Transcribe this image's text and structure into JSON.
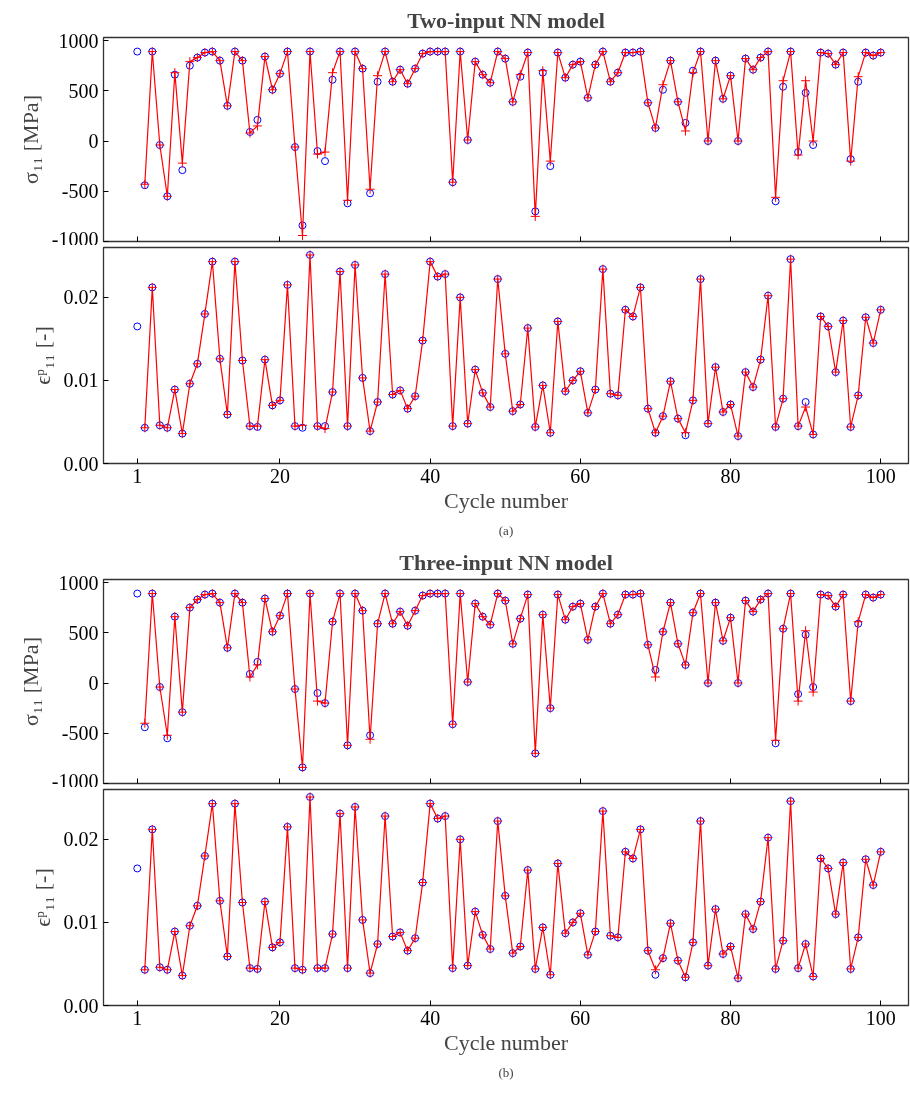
{
  "chart_data": [
    {
      "type": "line",
      "title": "Two-input NN model",
      "ylabel": "σ₁₁ [MPa]",
      "tick_labels": "y",
      "xlim": [
        -3.5,
        103.7
      ],
      "xticks": [
        1,
        20,
        40,
        60,
        80,
        100
      ],
      "ylim": [
        -1000,
        1030
      ],
      "yticks": [
        -1000,
        -500,
        0,
        500,
        1000
      ],
      "x": [
        1,
        2,
        3,
        4,
        5,
        6,
        7,
        8,
        9,
        10,
        11,
        12,
        13,
        14,
        15,
        16,
        17,
        18,
        19,
        20,
        21,
        22,
        23,
        24,
        25,
        26,
        27,
        28,
        29,
        30,
        31,
        32,
        33,
        34,
        35,
        36,
        37,
        38,
        39,
        40,
        41,
        42,
        43,
        44,
        45,
        46,
        47,
        48,
        49,
        50,
        51,
        52,
        53,
        54,
        55,
        56,
        57,
        58,
        59,
        60,
        61,
        62,
        63,
        64,
        65,
        66,
        67,
        68,
        69,
        70,
        71,
        72,
        73,
        74,
        75,
        76,
        77,
        78,
        79,
        80,
        81,
        82,
        83,
        84,
        85,
        86,
        87,
        88,
        89,
        90,
        91,
        92,
        93,
        94,
        95,
        96,
        97,
        98,
        99,
        100
      ],
      "series": [
        {
          "type": "scatter",
          "marker": "circle",
          "color": "#0000ff",
          "values": [
            890,
            -440,
            890,
            -40,
            -550,
            660,
            -290,
            750,
            830,
            880,
            890,
            800,
            350,
            890,
            800,
            90,
            210,
            840,
            510,
            670,
            890,
            -60,
            -840,
            890,
            -100,
            -200,
            610,
            890,
            -620,
            890,
            720,
            -520,
            590,
            890,
            590,
            710,
            570,
            720,
            870,
            890,
            890,
            890,
            -410,
            890,
            10,
            790,
            660,
            580,
            890,
            820,
            390,
            640,
            880,
            -700,
            680,
            -250,
            880,
            630,
            760,
            790,
            430,
            760,
            890,
            590,
            680,
            880,
            880,
            890,
            380,
            130,
            510,
            800,
            390,
            180,
            700,
            890,
            0,
            800,
            420,
            650,
            0,
            820,
            710,
            830,
            890,
            -600,
            540,
            890,
            -110,
            480,
            -40,
            880,
            870,
            760,
            880,
            -180,
            590,
            880,
            850,
            880
          ]
        },
        {
          "marker": "cross",
          "color": "#ff0000",
          "values": [
            null,
            -430,
            890,
            -40,
            -550,
            680,
            -220,
            790,
            830,
            880,
            890,
            800,
            350,
            890,
            800,
            80,
            150,
            840,
            510,
            670,
            890,
            -60,
            -940,
            890,
            -130,
            -110,
            680,
            890,
            -590,
            890,
            720,
            -480,
            650,
            890,
            590,
            710,
            570,
            720,
            870,
            890,
            890,
            890,
            -410,
            890,
            10,
            790,
            660,
            580,
            890,
            820,
            390,
            660,
            880,
            -750,
            700,
            -200,
            880,
            630,
            760,
            790,
            430,
            760,
            890,
            590,
            680,
            880,
            880,
            890,
            380,
            130,
            560,
            800,
            390,
            100,
            680,
            890,
            0,
            800,
            420,
            650,
            0,
            820,
            710,
            830,
            890,
            -560,
            600,
            890,
            -140,
            600,
            0,
            880,
            870,
            760,
            880,
            -200,
            640,
            880,
            850,
            880
          ]
        }
      ]
    },
    {
      "type": "line",
      "xlabel": "Cycle number",
      "ylabel": "ϵᵖ₁₁ [-]",
      "annotations": [
        "(a)"
      ],
      "xlim": [
        -3.5,
        103.7
      ],
      "xticks": [
        1,
        20,
        40,
        60,
        80,
        100
      ],
      "ylim": [
        0,
        0.026
      ],
      "yticks": [
        {
          "value": 0,
          "label": "0.00"
        },
        {
          "value": 0.01,
          "label": "0.01"
        },
        {
          "value": 0.02,
          "label": "0.02"
        }
      ],
      "x": [
        1,
        2,
        3,
        4,
        5,
        6,
        7,
        8,
        9,
        10,
        11,
        12,
        13,
        14,
        15,
        16,
        17,
        18,
        19,
        20,
        21,
        22,
        23,
        24,
        25,
        26,
        27,
        28,
        29,
        30,
        31,
        32,
        33,
        34,
        35,
        36,
        37,
        38,
        39,
        40,
        41,
        42,
        43,
        44,
        45,
        46,
        47,
        48,
        49,
        50,
        51,
        52,
        53,
        54,
        55,
        56,
        57,
        58,
        59,
        60,
        61,
        62,
        63,
        64,
        65,
        66,
        67,
        68,
        69,
        70,
        71,
        72,
        73,
        74,
        75,
        76,
        77,
        78,
        79,
        80,
        81,
        82,
        83,
        84,
        85,
        86,
        87,
        88,
        89,
        90,
        91,
        92,
        93,
        94,
        95,
        96,
        97,
        98,
        99,
        100
      ],
      "series": [
        {
          "type": "scatter",
          "marker": "circle",
          "color": "#0000ff",
          "values": [
            0.0165,
            0.0043,
            0.0212,
            0.0046,
            0.0043,
            0.0089,
            0.0036,
            0.0096,
            0.012,
            0.018,
            0.0243,
            0.0126,
            0.0059,
            0.0243,
            0.0124,
            0.0045,
            0.0044,
            0.0125,
            0.007,
            0.0076,
            0.0215,
            0.0045,
            0.0043,
            0.0251,
            0.0045,
            0.0045,
            0.0086,
            0.0231,
            0.0045,
            0.0239,
            0.0103,
            0.0039,
            0.0074,
            0.0228,
            0.0083,
            0.0088,
            0.0066,
            0.0081,
            0.0148,
            0.0243,
            0.0225,
            0.0228,
            0.0045,
            0.02,
            0.0048,
            0.0113,
            0.0085,
            0.0068,
            0.0222,
            0.0132,
            0.0063,
            0.0071,
            0.0163,
            0.0044,
            0.0094,
            0.0037,
            0.0171,
            0.0087,
            0.01,
            0.0111,
            0.0061,
            0.0089,
            0.0234,
            0.0084,
            0.0082,
            0.0185,
            0.0177,
            0.0212,
            0.0066,
            0.0037,
            0.0057,
            0.0099,
            0.0054,
            0.0034,
            0.0076,
            0.0222,
            0.0048,
            0.0116,
            0.0062,
            0.0071,
            0.0033,
            0.011,
            0.0092,
            0.0125,
            0.0202,
            0.0044,
            0.0078,
            0.0246,
            0.0045,
            0.0074,
            0.0035,
            0.0177,
            0.0165,
            0.011,
            0.0172,
            0.0044,
            0.0082,
            0.0176,
            0.0145,
            0.0185
          ]
        },
        {
          "marker": "cross",
          "color": "#ff0000",
          "values": [
            null,
            0.0043,
            0.0212,
            0.0046,
            0.0043,
            0.0089,
            0.0036,
            0.0096,
            0.012,
            0.018,
            0.0243,
            0.0126,
            0.0059,
            0.0243,
            0.0124,
            0.0045,
            0.0045,
            0.0125,
            0.007,
            0.0076,
            0.0215,
            0.0045,
            0.0046,
            0.0251,
            0.0045,
            0.0042,
            0.0086,
            0.0231,
            0.0045,
            0.0239,
            0.0103,
            0.0039,
            0.0074,
            0.0228,
            0.0083,
            0.0088,
            0.0066,
            0.0081,
            0.0148,
            0.0243,
            0.0225,
            0.0228,
            0.0045,
            0.02,
            0.0048,
            0.0113,
            0.0085,
            0.0068,
            0.0222,
            0.0132,
            0.0063,
            0.0071,
            0.0163,
            0.0044,
            0.0094,
            0.0037,
            0.0171,
            0.0087,
            0.01,
            0.0111,
            0.0061,
            0.0089,
            0.0234,
            0.0084,
            0.0082,
            0.0185,
            0.0177,
            0.0212,
            0.0066,
            0.0037,
            0.0057,
            0.0099,
            0.0054,
            0.0037,
            0.0076,
            0.0222,
            0.0048,
            0.0116,
            0.0062,
            0.0071,
            0.0033,
            0.011,
            0.0092,
            0.0125,
            0.0202,
            0.0044,
            0.0078,
            0.0246,
            0.0045,
            0.0068,
            0.0035,
            0.0177,
            0.0165,
            0.011,
            0.0172,
            0.0044,
            0.0082,
            0.0176,
            0.0145,
            0.0185
          ]
        }
      ]
    },
    {
      "type": "line",
      "title": "Three-input NN model",
      "ylabel": "σ₁₁ [MPa]",
      "tick_labels": "y",
      "xlim": [
        -3.5,
        103.7
      ],
      "xticks": [
        1,
        20,
        40,
        60,
        80,
        100
      ],
      "ylim": [
        -1000,
        1030
      ],
      "yticks": [
        -1000,
        -500,
        0,
        500,
        1000
      ],
      "x": [
        1,
        2,
        3,
        4,
        5,
        6,
        7,
        8,
        9,
        10,
        11,
        12,
        13,
        14,
        15,
        16,
        17,
        18,
        19,
        20,
        21,
        22,
        23,
        24,
        25,
        26,
        27,
        28,
        29,
        30,
        31,
        32,
        33,
        34,
        35,
        36,
        37,
        38,
        39,
        40,
        41,
        42,
        43,
        44,
        45,
        46,
        47,
        48,
        49,
        50,
        51,
        52,
        53,
        54,
        55,
        56,
        57,
        58,
        59,
        60,
        61,
        62,
        63,
        64,
        65,
        66,
        67,
        68,
        69,
        70,
        71,
        72,
        73,
        74,
        75,
        76,
        77,
        78,
        79,
        80,
        81,
        82,
        83,
        84,
        85,
        86,
        87,
        88,
        89,
        90,
        91,
        92,
        93,
        94,
        95,
        96,
        97,
        98,
        99,
        100
      ],
      "series": [
        {
          "type": "scatter",
          "marker": "circle",
          "color": "#0000ff",
          "values": [
            890,
            -440,
            890,
            -40,
            -550,
            660,
            -290,
            750,
            830,
            880,
            890,
            800,
            350,
            890,
            800,
            90,
            210,
            840,
            510,
            670,
            890,
            -60,
            -840,
            890,
            -100,
            -200,
            610,
            890,
            -620,
            890,
            720,
            -520,
            590,
            890,
            590,
            710,
            570,
            720,
            870,
            890,
            890,
            890,
            -410,
            890,
            10,
            790,
            660,
            580,
            890,
            820,
            390,
            640,
            880,
            -700,
            680,
            -250,
            880,
            630,
            760,
            790,
            430,
            760,
            890,
            590,
            680,
            880,
            880,
            890,
            380,
            130,
            510,
            800,
            390,
            180,
            700,
            890,
            0,
            800,
            420,
            650,
            0,
            820,
            710,
            830,
            890,
            -600,
            540,
            890,
            -110,
            480,
            -40,
            880,
            870,
            760,
            880,
            -180,
            590,
            880,
            850,
            880
          ]
        },
        {
          "marker": "cross",
          "color": "#ff0000",
          "values": [
            null,
            -400,
            890,
            -40,
            -520,
            660,
            -290,
            750,
            830,
            880,
            890,
            800,
            350,
            890,
            800,
            60,
            180,
            840,
            510,
            670,
            890,
            -60,
            -840,
            890,
            -180,
            -200,
            610,
            890,
            -620,
            890,
            720,
            -560,
            590,
            890,
            590,
            710,
            570,
            720,
            870,
            890,
            890,
            890,
            -410,
            890,
            10,
            790,
            660,
            580,
            890,
            820,
            390,
            640,
            880,
            -700,
            680,
            -250,
            880,
            630,
            760,
            790,
            430,
            760,
            890,
            590,
            680,
            880,
            880,
            890,
            380,
            60,
            510,
            800,
            390,
            180,
            700,
            890,
            0,
            800,
            420,
            650,
            0,
            820,
            710,
            830,
            890,
            -570,
            540,
            890,
            -180,
            520,
            -90,
            880,
            870,
            760,
            880,
            -180,
            610,
            880,
            850,
            880
          ]
        }
      ]
    },
    {
      "type": "line",
      "xlabel": "Cycle number",
      "ylabel": "ϵᵖ₁₁ [-]",
      "annotations": [
        "(b)"
      ],
      "xlim": [
        -3.5,
        103.7
      ],
      "xticks": [
        1,
        20,
        40,
        60,
        80,
        100
      ],
      "ylim": [
        0,
        0.026
      ],
      "yticks": [
        {
          "value": 0,
          "label": "0.00"
        },
        {
          "value": 0.01,
          "label": "0.01"
        },
        {
          "value": 0.02,
          "label": "0.02"
        }
      ],
      "x": [
        1,
        2,
        3,
        4,
        5,
        6,
        7,
        8,
        9,
        10,
        11,
        12,
        13,
        14,
        15,
        16,
        17,
        18,
        19,
        20,
        21,
        22,
        23,
        24,
        25,
        26,
        27,
        28,
        29,
        30,
        31,
        32,
        33,
        34,
        35,
        36,
        37,
        38,
        39,
        40,
        41,
        42,
        43,
        44,
        45,
        46,
        47,
        48,
        49,
        50,
        51,
        52,
        53,
        54,
        55,
        56,
        57,
        58,
        59,
        60,
        61,
        62,
        63,
        64,
        65,
        66,
        67,
        68,
        69,
        70,
        71,
        72,
        73,
        74,
        75,
        76,
        77,
        78,
        79,
        80,
        81,
        82,
        83,
        84,
        85,
        86,
        87,
        88,
        89,
        90,
        91,
        92,
        93,
        94,
        95,
        96,
        97,
        98,
        99,
        100
      ],
      "series": [
        {
          "type": "scatter",
          "marker": "circle",
          "color": "#0000ff",
          "values": [
            0.0165,
            0.0043,
            0.0212,
            0.0046,
            0.0043,
            0.0089,
            0.0036,
            0.0096,
            0.012,
            0.018,
            0.0243,
            0.0126,
            0.0059,
            0.0243,
            0.0124,
            0.0045,
            0.0044,
            0.0125,
            0.007,
            0.0076,
            0.0215,
            0.0045,
            0.0043,
            0.0251,
            0.0045,
            0.0045,
            0.0086,
            0.0231,
            0.0045,
            0.0239,
            0.0103,
            0.0039,
            0.0074,
            0.0228,
            0.0083,
            0.0088,
            0.0066,
            0.0081,
            0.0148,
            0.0243,
            0.0225,
            0.0228,
            0.0045,
            0.02,
            0.0048,
            0.0113,
            0.0085,
            0.0068,
            0.0222,
            0.0132,
            0.0063,
            0.0071,
            0.0163,
            0.0044,
            0.0094,
            0.0037,
            0.0171,
            0.0087,
            0.01,
            0.0111,
            0.0061,
            0.0089,
            0.0234,
            0.0084,
            0.0082,
            0.0185,
            0.0177,
            0.0212,
            0.0066,
            0.0037,
            0.0057,
            0.0099,
            0.0054,
            0.0034,
            0.0076,
            0.0222,
            0.0048,
            0.0116,
            0.0062,
            0.0071,
            0.0033,
            0.011,
            0.0092,
            0.0125,
            0.0202,
            0.0044,
            0.0078,
            0.0246,
            0.0045,
            0.0074,
            0.0035,
            0.0177,
            0.0165,
            0.011,
            0.0172,
            0.0044,
            0.0082,
            0.0176,
            0.0145,
            0.0185
          ]
        },
        {
          "marker": "cross",
          "color": "#ff0000",
          "values": [
            null,
            0.0043,
            0.0212,
            0.0046,
            0.0043,
            0.0089,
            0.0036,
            0.0096,
            0.012,
            0.018,
            0.0243,
            0.0126,
            0.0059,
            0.0243,
            0.0124,
            0.0045,
            0.0044,
            0.0125,
            0.007,
            0.0076,
            0.0215,
            0.0045,
            0.0043,
            0.0251,
            0.0045,
            0.0045,
            0.0086,
            0.0231,
            0.0045,
            0.0239,
            0.0103,
            0.0039,
            0.0074,
            0.0228,
            0.0083,
            0.0088,
            0.0066,
            0.0081,
            0.0148,
            0.0243,
            0.0225,
            0.0228,
            0.0045,
            0.02,
            0.0048,
            0.0113,
            0.0085,
            0.0068,
            0.0222,
            0.0132,
            0.0063,
            0.0071,
            0.0163,
            0.0044,
            0.0094,
            0.0037,
            0.0171,
            0.0087,
            0.01,
            0.0111,
            0.0061,
            0.0089,
            0.0234,
            0.0084,
            0.0082,
            0.0185,
            0.0177,
            0.0212,
            0.0066,
            0.0043,
            0.0057,
            0.0099,
            0.0054,
            0.0034,
            0.0076,
            0.0222,
            0.0048,
            0.0116,
            0.0062,
            0.0071,
            0.0033,
            0.011,
            0.0092,
            0.0125,
            0.0202,
            0.0044,
            0.0078,
            0.0246,
            0.0045,
            0.0074,
            0.0035,
            0.0177,
            0.0165,
            0.011,
            0.0172,
            0.0044,
            0.0082,
            0.0176,
            0.0145,
            0.0185
          ]
        }
      ]
    }
  ]
}
